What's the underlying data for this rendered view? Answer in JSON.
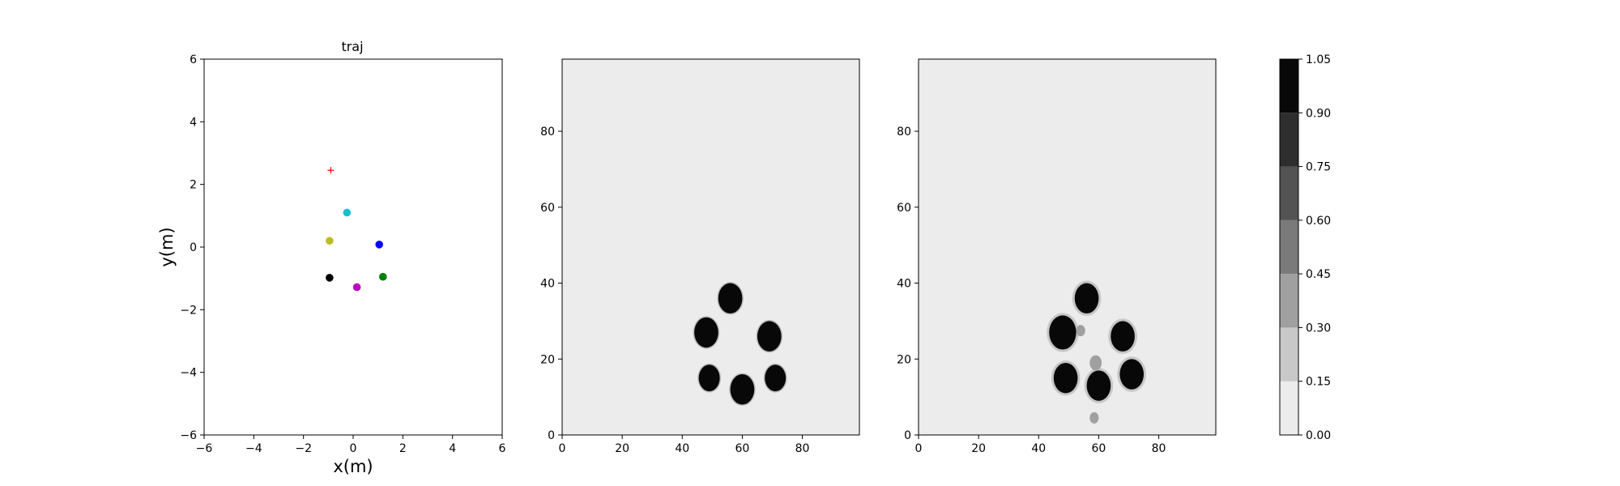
{
  "chart_data": [
    {
      "type": "scatter",
      "title": "traj",
      "xlabel": "x(m)",
      "ylabel": "y(m)",
      "xlim": [
        -6,
        6
      ],
      "ylim": [
        -6,
        6
      ],
      "xticks": [
        -6,
        -4,
        -2,
        0,
        2,
        4,
        6
      ],
      "yticks": [
        -6,
        -4,
        -2,
        0,
        2,
        4,
        6
      ],
      "grid": false,
      "points": [
        {
          "x": -0.9,
          "y": 2.45,
          "color": "#ff0000",
          "marker": "plus"
        },
        {
          "x": -0.25,
          "y": 1.1,
          "color": "#17becf",
          "marker": "circle"
        },
        {
          "x": -0.95,
          "y": 0.2,
          "color": "#bcbd22",
          "marker": "circle"
        },
        {
          "x": 1.05,
          "y": 0.08,
          "color": "#0000ff",
          "marker": "circle"
        },
        {
          "x": -0.95,
          "y": -0.98,
          "color": "#000000",
          "marker": "circle"
        },
        {
          "x": 1.2,
          "y": -0.95,
          "color": "#008000",
          "marker": "circle"
        },
        {
          "x": 0.15,
          "y": -1.28,
          "color": "#c000c0",
          "marker": "circle"
        }
      ]
    },
    {
      "type": "heatmap",
      "title": "",
      "xlim": [
        0,
        99
      ],
      "ylim": [
        0,
        99
      ],
      "xticks": [
        0,
        20,
        40,
        60,
        80
      ],
      "yticks": [
        0,
        20,
        40,
        60,
        80
      ],
      "background_value": 0.0,
      "blobs": [
        {
          "x": 56,
          "y": 36,
          "r": 4,
          "value": 1.0
        },
        {
          "x": 48,
          "y": 27,
          "r": 4,
          "value": 1.0
        },
        {
          "x": 69,
          "y": 26,
          "r": 4,
          "value": 1.0
        },
        {
          "x": 49,
          "y": 15,
          "r": 3.5,
          "value": 1.0
        },
        {
          "x": 60,
          "y": 12,
          "r": 4,
          "value": 1.0
        },
        {
          "x": 71,
          "y": 15,
          "r": 3.5,
          "value": 1.0
        }
      ]
    },
    {
      "type": "heatmap",
      "title": "",
      "xlim": [
        0,
        99
      ],
      "ylim": [
        0,
        99
      ],
      "xticks": [
        0,
        20,
        40,
        60,
        80
      ],
      "yticks": [
        0,
        20,
        40,
        60,
        80
      ],
      "background_value": 0.0,
      "blobs": [
        {
          "x": 56,
          "y": 36,
          "r": 4,
          "value": 1.0
        },
        {
          "x": 48,
          "y": 27,
          "r": 4.5,
          "value": 1.0
        },
        {
          "x": 68,
          "y": 26,
          "r": 4,
          "value": 1.0
        },
        {
          "x": 49,
          "y": 15,
          "r": 4,
          "value": 1.0
        },
        {
          "x": 60,
          "y": 13,
          "r": 4,
          "value": 1.0
        },
        {
          "x": 71,
          "y": 16,
          "r": 4,
          "value": 1.0
        },
        {
          "x": 59,
          "y": 19,
          "r": 2,
          "value": 0.35
        },
        {
          "x": 54,
          "y": 27.5,
          "r": 1.5,
          "value": 0.3
        },
        {
          "x": 58.5,
          "y": 4.5,
          "r": 1.5,
          "value": 0.3
        }
      ]
    }
  ],
  "colorbar": {
    "levels": [
      0.0,
      0.15,
      0.3,
      0.45,
      0.6,
      0.75,
      0.9,
      1.05
    ],
    "tick_labels": [
      "0.00",
      "0.15",
      "0.30",
      "0.45",
      "0.60",
      "0.75",
      "0.90",
      "1.05"
    ],
    "colors": [
      "#ececec",
      "#c8c8c8",
      "#a0a0a0",
      "#7a7a7a",
      "#535353",
      "#2e2e2e",
      "#080808"
    ]
  }
}
